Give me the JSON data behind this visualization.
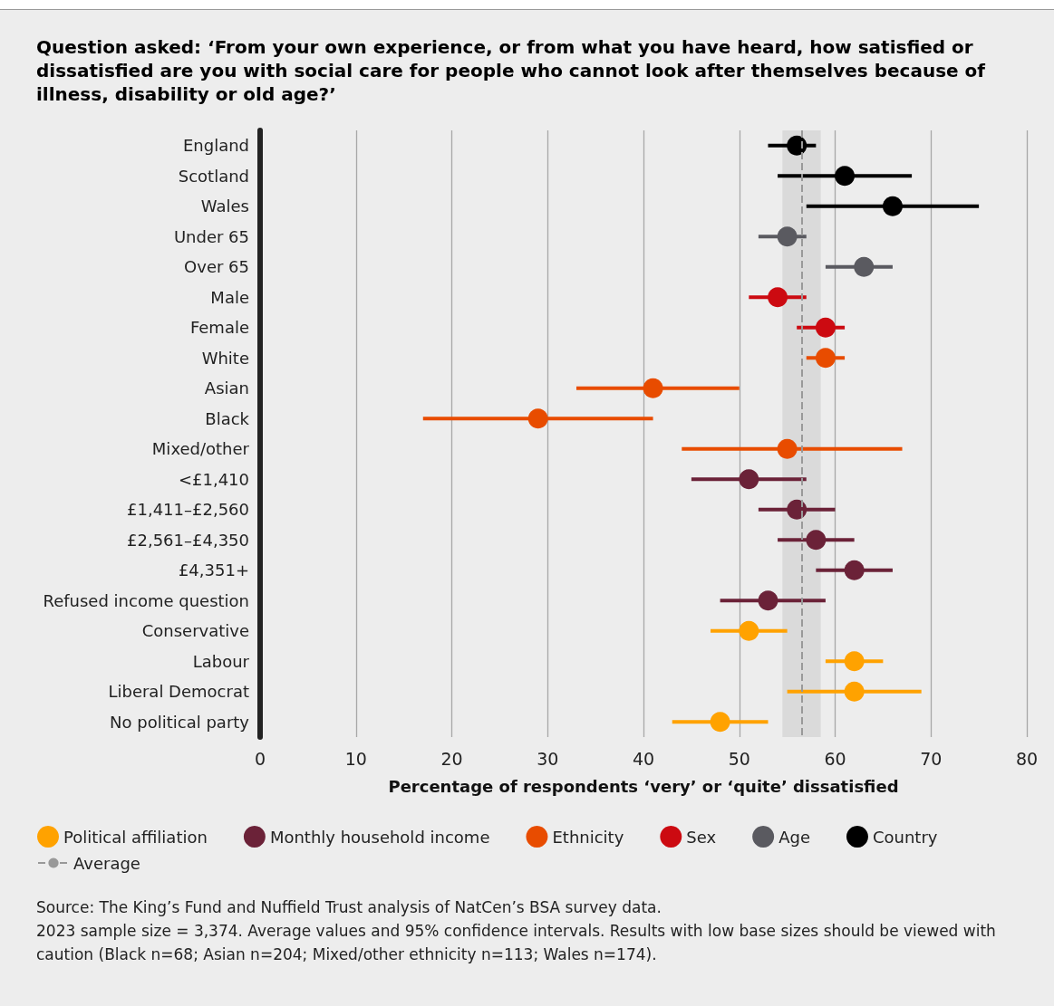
{
  "chart_data": {
    "type": "scatter",
    "orientation": "horizontal",
    "title": "Question asked: ‘From your own experience, or from what you have heard, how satisfied or dissatisfied are you with social care for people who cannot look after themselves because of illness, disability or old age?’",
    "xlabel": "Percentage of respondents ‘very’ or ‘quite’ dissatisfied",
    "categories": [
      "England",
      "Scotland",
      "Wales",
      "Under 65",
      "Over 65",
      "Male",
      "Female",
      "White",
      "Asian",
      "Black",
      "Mixed/other",
      "<£1,410",
      "£1,411–£2,560",
      "£2,561–£4,350",
      "£4,351+",
      "Refused income question",
      "Conservative",
      "Labour",
      "Liberal Democrat",
      "No political party"
    ],
    "xlim": [
      0,
      80
    ],
    "xticks": [
      0,
      10,
      20,
      30,
      40,
      50,
      60,
      70,
      80
    ],
    "grid": "x",
    "legend": "bottom",
    "marker": "circle",
    "series": [
      {
        "name": "Political affiliation",
        "color": "#ffa200",
        "values": [
          null,
          null,
          null,
          null,
          null,
          null,
          null,
          null,
          null,
          null,
          null,
          null,
          null,
          null,
          null,
          null,
          51,
          62,
          62,
          48
        ],
        "errors": [
          null,
          null,
          null,
          null,
          null,
          null,
          null,
          null,
          null,
          null,
          null,
          null,
          null,
          null,
          null,
          null,
          [
            47,
            55
          ],
          [
            59,
            65
          ],
          [
            55,
            69
          ],
          [
            43,
            53
          ]
        ]
      },
      {
        "name": "Monthly household income",
        "color": "#6b2238",
        "values": [
          null,
          null,
          null,
          null,
          null,
          null,
          null,
          null,
          null,
          null,
          null,
          51,
          56,
          58,
          62,
          53,
          null,
          null,
          null,
          null
        ],
        "errors": [
          null,
          null,
          null,
          null,
          null,
          null,
          null,
          null,
          null,
          null,
          null,
          [
            45,
            57
          ],
          [
            52,
            60
          ],
          [
            54,
            62
          ],
          [
            58,
            66
          ],
          [
            48,
            59
          ],
          null,
          null,
          null,
          null
        ]
      },
      {
        "name": "Ethnicity",
        "color": "#e84c00",
        "values": [
          null,
          null,
          null,
          null,
          null,
          null,
          null,
          59,
          41,
          29,
          55,
          null,
          null,
          null,
          null,
          null,
          null,
          null,
          null,
          null
        ],
        "errors": [
          null,
          null,
          null,
          null,
          null,
          null,
          null,
          [
            57,
            61
          ],
          [
            33,
            50
          ],
          [
            17,
            41
          ],
          [
            44,
            67
          ],
          null,
          null,
          null,
          null,
          null,
          null,
          null,
          null,
          null
        ]
      },
      {
        "name": "Sex",
        "color": "#cc0a11",
        "values": [
          null,
          null,
          null,
          null,
          null,
          54,
          59,
          null,
          null,
          null,
          null,
          null,
          null,
          null,
          null,
          null,
          null,
          null,
          null,
          null
        ],
        "errors": [
          null,
          null,
          null,
          null,
          null,
          [
            51,
            57
          ],
          [
            56,
            61
          ],
          null,
          null,
          null,
          null,
          null,
          null,
          null,
          null,
          null,
          null,
          null,
          null,
          null
        ]
      },
      {
        "name": "Age",
        "color": "#5a5a60",
        "values": [
          null,
          null,
          null,
          55,
          63,
          null,
          null,
          null,
          null,
          null,
          null,
          null,
          null,
          null,
          null,
          null,
          null,
          null,
          null,
          null
        ],
        "errors": [
          null,
          null,
          null,
          [
            52,
            57
          ],
          [
            59,
            66
          ],
          null,
          null,
          null,
          null,
          null,
          null,
          null,
          null,
          null,
          null,
          null,
          null,
          null,
          null,
          null
        ]
      },
      {
        "name": "Country",
        "color": "#000000",
        "values": [
          56,
          61,
          66,
          null,
          null,
          null,
          null,
          null,
          null,
          null,
          null,
          null,
          null,
          null,
          null,
          null,
          null,
          null,
          null,
          null
        ],
        "errors": [
          [
            53,
            58
          ],
          [
            54,
            68
          ],
          [
            57,
            75
          ],
          null,
          null,
          null,
          null,
          null,
          null,
          null,
          null,
          null,
          null,
          null,
          null,
          null,
          null,
          null,
          null,
          null
        ]
      }
    ],
    "ref_lines": [
      {
        "axis": "x",
        "value": 56.5,
        "label": "Average",
        "color": "#999999",
        "line_style": "dashed"
      }
    ],
    "bands": [
      {
        "axis": "x",
        "from": 54.5,
        "to": 58.5,
        "color": "#dadada"
      }
    ],
    "annotations": [
      "Source: The King’s Fund and Nuffield Trust analysis of NatCen’s BSA survey data.",
      "2023 sample size = 3,374. Average values and 95% confidence intervals. Results with low base sizes should be viewed with caution (Black n=68; Asian n=204; Mixed/other ethnicity n=113; Wales n=174)."
    ]
  }
}
